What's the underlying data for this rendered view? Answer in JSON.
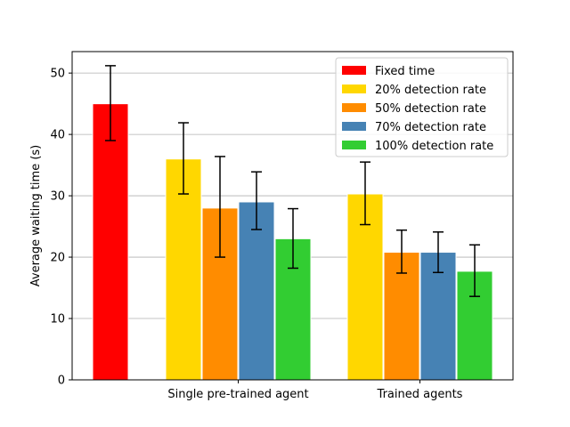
{
  "chart_data": {
    "type": "bar",
    "title": "",
    "xlabel": "",
    "ylabel": "Average waiting time (s)",
    "ylim": [
      0,
      53.5
    ],
    "yticks": [
      0,
      10,
      20,
      30,
      40,
      50
    ],
    "grid": "horizontal",
    "legend_position": "top-right",
    "groups": [
      {
        "label": "",
        "bars": [
          {
            "series": "Fixed time",
            "value": 45.0,
            "err_low": 39.0,
            "err_high": 51.2
          }
        ]
      },
      {
        "label": "Single pre-trained agent",
        "bars": [
          {
            "series": "20% detection rate",
            "value": 36.0,
            "err_low": 30.3,
            "err_high": 41.9
          },
          {
            "series": "50% detection rate",
            "value": 28.0,
            "err_low": 20.0,
            "err_high": 36.4
          },
          {
            "series": "70% detection rate",
            "value": 29.0,
            "err_low": 24.5,
            "err_high": 33.9
          },
          {
            "series": "100% detection rate",
            "value": 23.0,
            "err_low": 18.2,
            "err_high": 27.9
          }
        ]
      },
      {
        "label": "Trained agents",
        "bars": [
          {
            "series": "20% detection rate",
            "value": 30.3,
            "err_low": 25.3,
            "err_high": 35.5
          },
          {
            "series": "50% detection rate",
            "value": 20.8,
            "err_low": 17.4,
            "err_high": 24.4
          },
          {
            "series": "70% detection rate",
            "value": 20.8,
            "err_low": 17.5,
            "err_high": 24.1
          },
          {
            "series": "100% detection rate",
            "value": 17.7,
            "err_low": 13.6,
            "err_high": 22.0
          }
        ]
      }
    ],
    "series": [
      {
        "name": "Fixed time",
        "color": "#ff0000"
      },
      {
        "name": "20% detection rate",
        "color": "#ffd700"
      },
      {
        "name": "50% detection rate",
        "color": "#ff8c00"
      },
      {
        "name": "70% detection rate",
        "color": "#4682b4"
      },
      {
        "name": "100% detection rate",
        "color": "#32cd32"
      }
    ]
  }
}
